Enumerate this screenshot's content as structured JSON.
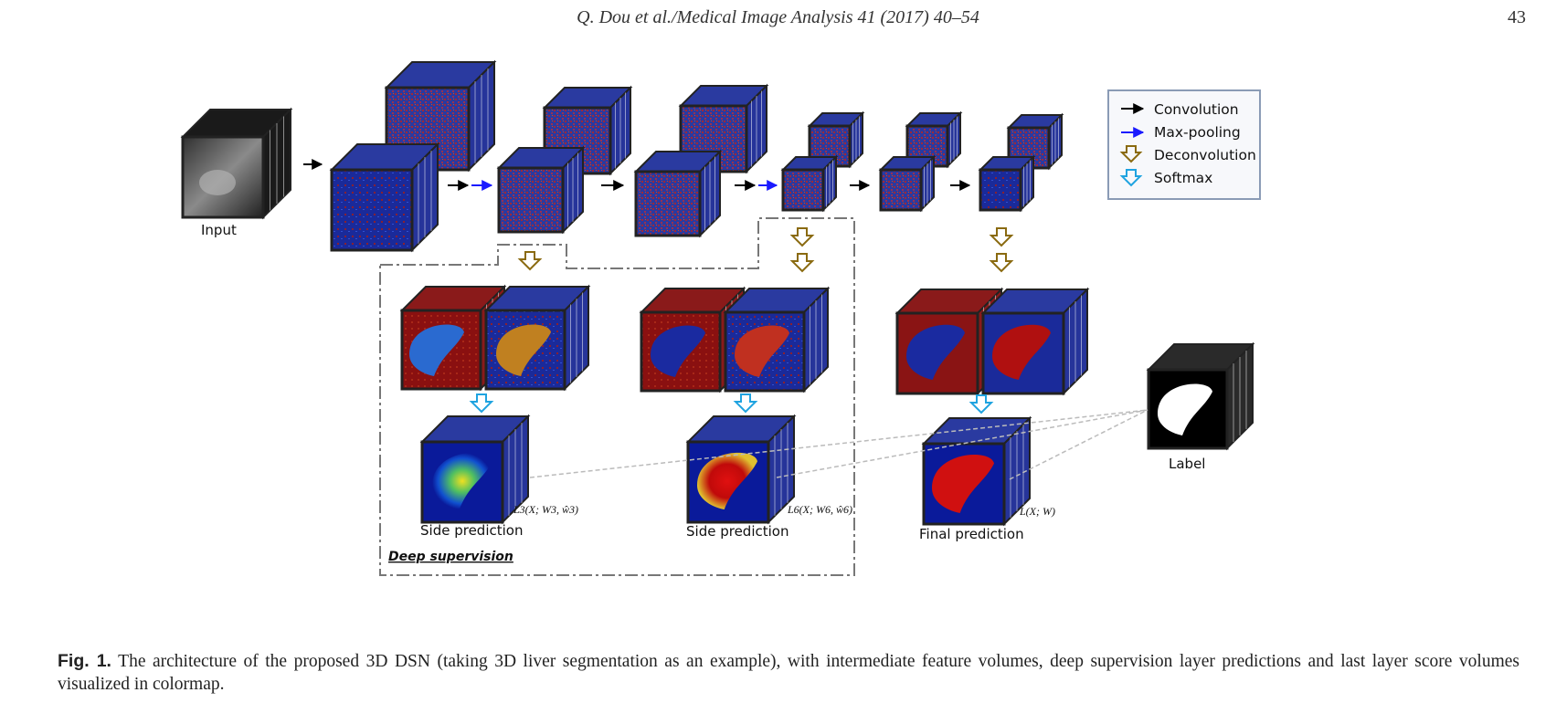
{
  "header": {
    "running_head": "Q. Dou et al./Medical Image Analysis 41 (2017) 40–54",
    "page_number": "43"
  },
  "figure": {
    "labels": {
      "input": "Input",
      "label": "Label",
      "side_prediction_1": "Side prediction",
      "side_prediction_2": "Side prediction",
      "final_prediction": "Final prediction",
      "deep_supervision": "Deep supervision",
      "loss_1": "L3(X; W3, ŵ3)",
      "loss_2": "L6(X; W6, ŵ6)",
      "loss_final": "L(X; W)"
    },
    "legend": [
      {
        "label": "Convolution",
        "icon": "black-arrow-icon",
        "color": "#000000"
      },
      {
        "label": "Max-pooling",
        "icon": "blue-arrow-icon",
        "color": "#1a1aff"
      },
      {
        "label": "Deconvolution",
        "icon": "hollow-down-arrow-icon",
        "color": "#8a6a10"
      },
      {
        "label": "Softmax",
        "icon": "hollow-down-arrow-icon",
        "color": "#1fa3e0"
      }
    ]
  },
  "caption": {
    "fig_label": "Fig. 1.",
    "text": "The architecture of the proposed 3D DSN (taking 3D liver segmentation as an example), with intermediate feature volumes, deep supervision layer predictions and last layer score volumes visualized in colormap."
  }
}
